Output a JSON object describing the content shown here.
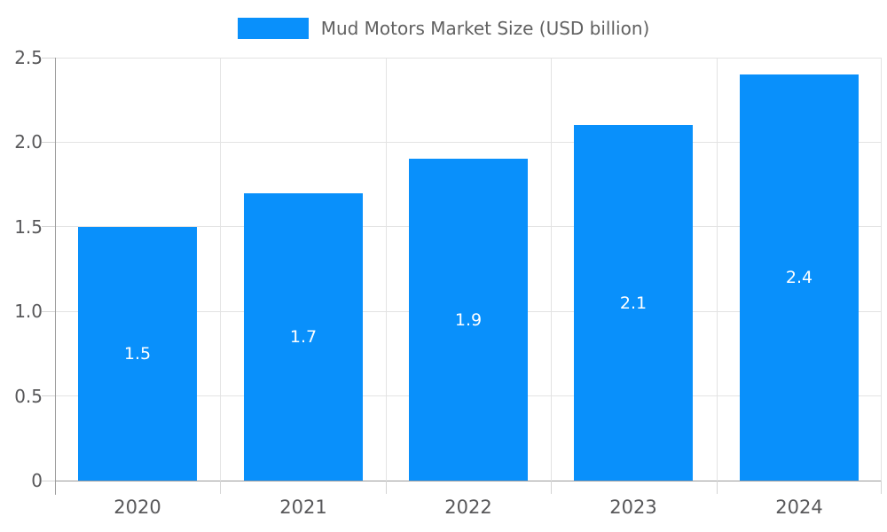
{
  "chart_data": {
    "type": "bar",
    "title": "Mud Motors Market Size (USD billion)",
    "categories": [
      "2020",
      "2021",
      "2022",
      "2023",
      "2024"
    ],
    "values": [
      1.5,
      1.7,
      1.9,
      2.1,
      2.4
    ],
    "data_labels": [
      "1.5",
      "1.7",
      "1.9",
      "2.1",
      "2.4"
    ],
    "y_tick_labels": [
      "0",
      "0.5",
      "1.0",
      "1.5",
      "2.0",
      "2.5"
    ],
    "y_tick_values": [
      0,
      0.5,
      1.0,
      1.5,
      2.0,
      2.5
    ],
    "ylim": [
      0,
      2.5
    ],
    "xlabel": "",
    "ylabel": "",
    "grid": true,
    "legend_position": "top-center",
    "bar_color": "#0990fb",
    "data_label_color": "#ffffff",
    "gridline_color": "#e3e3e3",
    "axis_line_color": "#9a9a9a",
    "tick_label_color": "#58585a",
    "legend_text_color": "#616161",
    "background_color": "#ffffff"
  }
}
